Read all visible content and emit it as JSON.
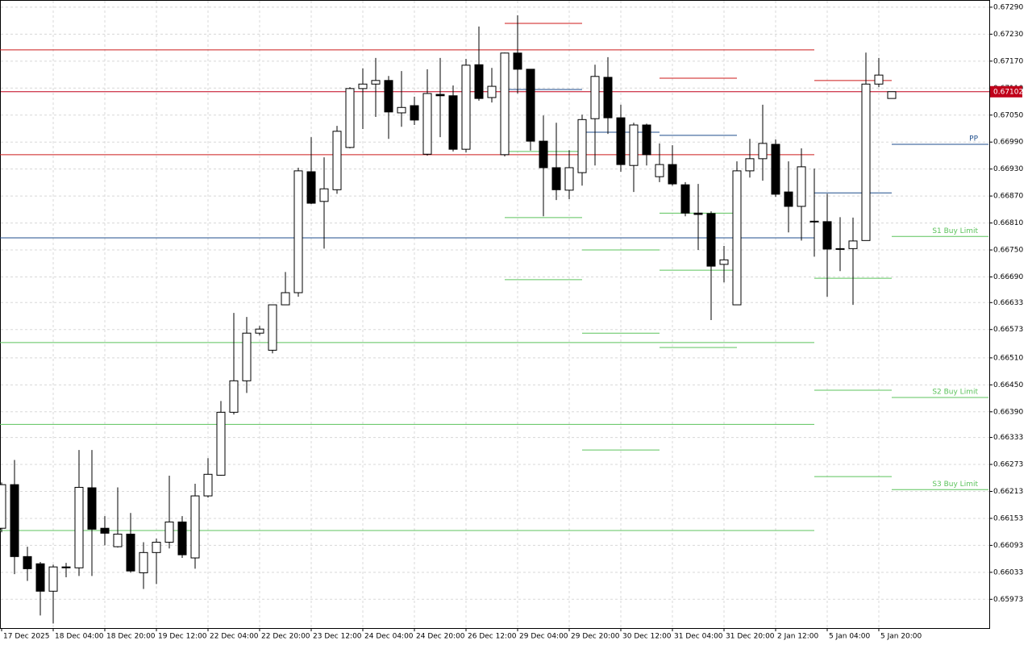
{
  "chart_data": {
    "type": "candlestick",
    "categories": [
      "17 Dec 2025",
      null,
      null,
      null,
      "18 Dec 04:00",
      null,
      null,
      null,
      "18 Dec 20:00",
      null,
      null,
      null,
      "19 Dec 12:00",
      null,
      null,
      null,
      "22 Dec 04:00",
      null,
      null,
      null,
      "22 Dec 20:00",
      null,
      null,
      null,
      "23 Dec 12:00",
      null,
      null,
      null,
      "24 Dec 04:00",
      null,
      null,
      null,
      "24 Dec 20:00",
      null,
      null,
      null,
      "26 Dec 12:00",
      null,
      null,
      null,
      "29 Dec 04:00",
      null,
      null,
      null,
      "29 Dec 20:00",
      null,
      null,
      null,
      "30 Dec 12:00",
      null,
      null,
      null,
      "31 Dec 04:00",
      null,
      null,
      null,
      "31 Dec 20:00",
      null,
      null,
      null,
      "2 Jan 12:00",
      null,
      null,
      null,
      "5 Jan 04:00",
      null,
      null,
      null,
      "5 Jan 20:00",
      null
    ],
    "open": [
      0.66131,
      0.66228,
      0.66068,
      0.66052,
      0.65991,
      0.66045,
      0.66043,
      0.66221,
      0.66131,
      0.6609,
      0.66118,
      0.66032,
      0.66077,
      0.661,
      0.66145,
      0.66065,
      0.66203,
      0.66249,
      0.66389,
      0.66459,
      0.66565,
      0.66527,
      0.66628,
      0.66655,
      0.66924,
      0.66858,
      0.66884,
      0.66978,
      0.67109,
      0.67119,
      0.67127,
      0.67055,
      0.67071,
      0.66963,
      0.67096,
      0.67093,
      0.66974,
      0.67162,
      0.67089,
      0.66962,
      0.67188,
      0.67152,
      0.66992,
      0.66933,
      0.66883,
      0.66922,
      0.67042,
      0.67134,
      0.67044,
      0.66938,
      0.67028,
      0.66913,
      0.6694,
      0.66895,
      0.66832,
      0.66831,
      0.66718,
      0.66628,
      0.66926,
      0.66953,
      0.66985,
      0.66879,
      0.66847,
      0.66814,
      0.66813,
      0.66753,
      0.66753,
      0.66771,
      0.67119,
      0.67087
    ],
    "high": [
      0.66233,
      0.66283,
      0.6609,
      0.66056,
      0.6605,
      0.66054,
      0.66305,
      0.66305,
      0.66158,
      0.66222,
      0.66165,
      0.661,
      0.66108,
      0.66248,
      0.66158,
      0.6623,
      0.66287,
      0.66414,
      0.6661,
      0.66601,
      0.66581,
      0.66628,
      0.66701,
      0.66933,
      0.67001,
      0.66956,
      0.67026,
      0.67112,
      0.67154,
      0.67177,
      0.67137,
      0.67148,
      0.67091,
      0.67152,
      0.67177,
      0.67116,
      0.67175,
      0.67247,
      0.67155,
      0.67189,
      0.67272,
      0.67152,
      0.67049,
      0.67033,
      0.66972,
      0.67051,
      0.67162,
      0.67179,
      0.67073,
      0.67033,
      0.67031,
      0.66987,
      0.66983,
      0.66901,
      0.66897,
      0.66836,
      0.66759,
      0.66947,
      0.66997,
      0.67073,
      0.66996,
      0.66947,
      0.66976,
      0.66931,
      0.66875,
      0.66823,
      0.66822,
      0.67189,
      0.67177,
      0.67102
    ],
    "low": [
      0.66122,
      0.66029,
      0.66014,
      0.65937,
      0.65919,
      0.66022,
      0.66025,
      0.66025,
      0.66093,
      0.66088,
      0.66032,
      0.65996,
      0.66007,
      0.66086,
      0.66065,
      0.66041,
      0.66199,
      0.66248,
      0.66384,
      0.66432,
      0.6656,
      0.6652,
      0.66628,
      0.66646,
      0.66852,
      0.66753,
      0.66875,
      0.66976,
      0.67019,
      0.67046,
      0.66997,
      0.67024,
      0.67028,
      0.6696,
      0.67001,
      0.66969,
      0.66967,
      0.67082,
      0.67078,
      0.66958,
      0.67098,
      0.66971,
      0.66825,
      0.66861,
      0.66863,
      0.66893,
      0.66938,
      0.67008,
      0.66924,
      0.66879,
      0.66938,
      0.66901,
      0.66893,
      0.66825,
      0.6675,
      0.66594,
      0.66678,
      0.66628,
      0.66911,
      0.66904,
      0.66868,
      0.66789,
      0.66771,
      0.66735,
      0.66646,
      0.66703,
      0.66628,
      0.66771,
      0.67112,
      0.67087
    ],
    "close": [
      0.66228,
      0.66068,
      0.66041,
      0.65991,
      0.66045,
      0.66043,
      0.66222,
      0.66129,
      0.6612,
      0.66118,
      0.66036,
      0.66077,
      0.661,
      0.66145,
      0.66072,
      0.66203,
      0.66251,
      0.66389,
      0.66459,
      0.66565,
      0.66574,
      0.66628,
      0.66655,
      0.66926,
      0.66854,
      0.66886,
      0.67014,
      0.67109,
      0.67119,
      0.67127,
      0.67057,
      0.67067,
      0.67039,
      0.67098,
      0.67093,
      0.66974,
      0.67161,
      0.67087,
      0.67114,
      0.67188,
      0.67152,
      0.66992,
      0.66933,
      0.66884,
      0.66933,
      0.6704,
      0.67136,
      0.67044,
      0.6694,
      0.67028,
      0.66962,
      0.6694,
      0.66897,
      0.66832,
      0.66829,
      0.66714,
      0.66728,
      0.66926,
      0.66953,
      0.66987,
      0.66874,
      0.66847,
      0.66935,
      0.66813,
      0.66752,
      0.66752,
      0.6677,
      0.67119,
      0.67139,
      0.67102
    ],
    "up_color": "#ffffff",
    "down_color": "#000000",
    "last_price": 0.67102,
    "last_price_color": "#c0001a",
    "ylim": [
      0.65909,
      0.67306
    ],
    "yticks": [
      {
        "value": 0.6729,
        "label": "0.67290"
      },
      {
        "value": 0.6723,
        "label": "0.67230"
      },
      {
        "value": 0.6717,
        "label": "0.67170"
      },
      {
        "value": 0.6711,
        "label": "0.67110"
      },
      {
        "value": 0.6705,
        "label": "0.67050"
      },
      {
        "value": 0.6699,
        "label": "0.66990"
      },
      {
        "value": 0.6693,
        "label": "0.66930"
      },
      {
        "value": 0.6687,
        "label": "0.66870"
      },
      {
        "value": 0.6681,
        "label": "0.66810"
      },
      {
        "value": 0.6675,
        "label": "0.66750"
      },
      {
        "value": 0.6669,
        "label": "0.66690"
      },
      0.66633,
      0.66573,
      {
        "value": 0.6651,
        "label": "0.66510"
      },
      {
        "value": 0.6645,
        "label": "0.66450"
      },
      {
        "value": 0.6639,
        "label": "0.66390"
      },
      0.66333,
      0.66273,
      0.66213,
      0.66153,
      0.66093,
      0.66033,
      0.65973
    ],
    "grid": true,
    "levels": [
      {
        "lines": [
          {
            "value": 0.67195,
            "color": "#cc1a1a"
          },
          {
            "value": 0.66962,
            "color": "#cc1a1a"
          },
          {
            "value": 0.66777,
            "color": "#1f4e8c"
          },
          {
            "value": 0.66544,
            "color": "#5cc35c"
          },
          {
            "value": 0.66362,
            "color": "#5cc35c"
          },
          {
            "value": 0.66126,
            "color": "#5cc35c"
          }
        ]
      },
      {
        "lines": [
          {
            "value": 0.67254,
            "color": "#cc1a1a"
          },
          {
            "value": 0.67107,
            "color": "#1f4e8c"
          },
          {
            "value": 0.66969,
            "color": "#5cc35c"
          },
          {
            "value": 0.66822,
            "color": "#5cc35c"
          },
          {
            "value": 0.66684,
            "color": "#5cc35c"
          }
        ]
      },
      {
        "lines": [
          {
            "value": 0.67012,
            "color": "#1f4e8c"
          },
          {
            "value": 0.6675,
            "color": "#5cc35c"
          },
          {
            "value": 0.66565,
            "color": "#5cc35c"
          },
          {
            "value": 0.66305,
            "color": "#5cc35c"
          }
        ]
      },
      {
        "lines": [
          {
            "value": 0.67132,
            "color": "#cc1a1a"
          },
          {
            "value": 0.67005,
            "color": "#1f4e8c"
          },
          {
            "value": 0.66832,
            "color": "#5cc35c"
          },
          {
            "value": 0.66705,
            "color": "#5cc35c"
          },
          {
            "value": 0.66533,
            "color": "#5cc35c"
          }
        ]
      },
      {
        "lines": [
          {
            "value": 0.67127,
            "color": "#cc1a1a"
          },
          {
            "value": 0.66877,
            "color": "#1f4e8c"
          },
          {
            "value": 0.66687,
            "color": "#5cc35c"
          },
          {
            "value": 0.66438,
            "color": "#5cc35c"
          },
          {
            "value": 0.66246,
            "color": "#5cc35c"
          }
        ]
      },
      {
        "lines": [
          {
            "value": 0.66985,
            "color": "#1f4e8c",
            "label": "PP"
          },
          {
            "value": 0.6678,
            "color": "#5cc35c",
            "label": "S1 Buy Limit"
          },
          {
            "value": 0.66422,
            "color": "#5cc35c",
            "label": "S2 Buy Limit"
          },
          {
            "value": 0.66217,
            "color": "#5cc35c",
            "label": "S3 Buy Limit"
          }
        ]
      }
    ]
  }
}
